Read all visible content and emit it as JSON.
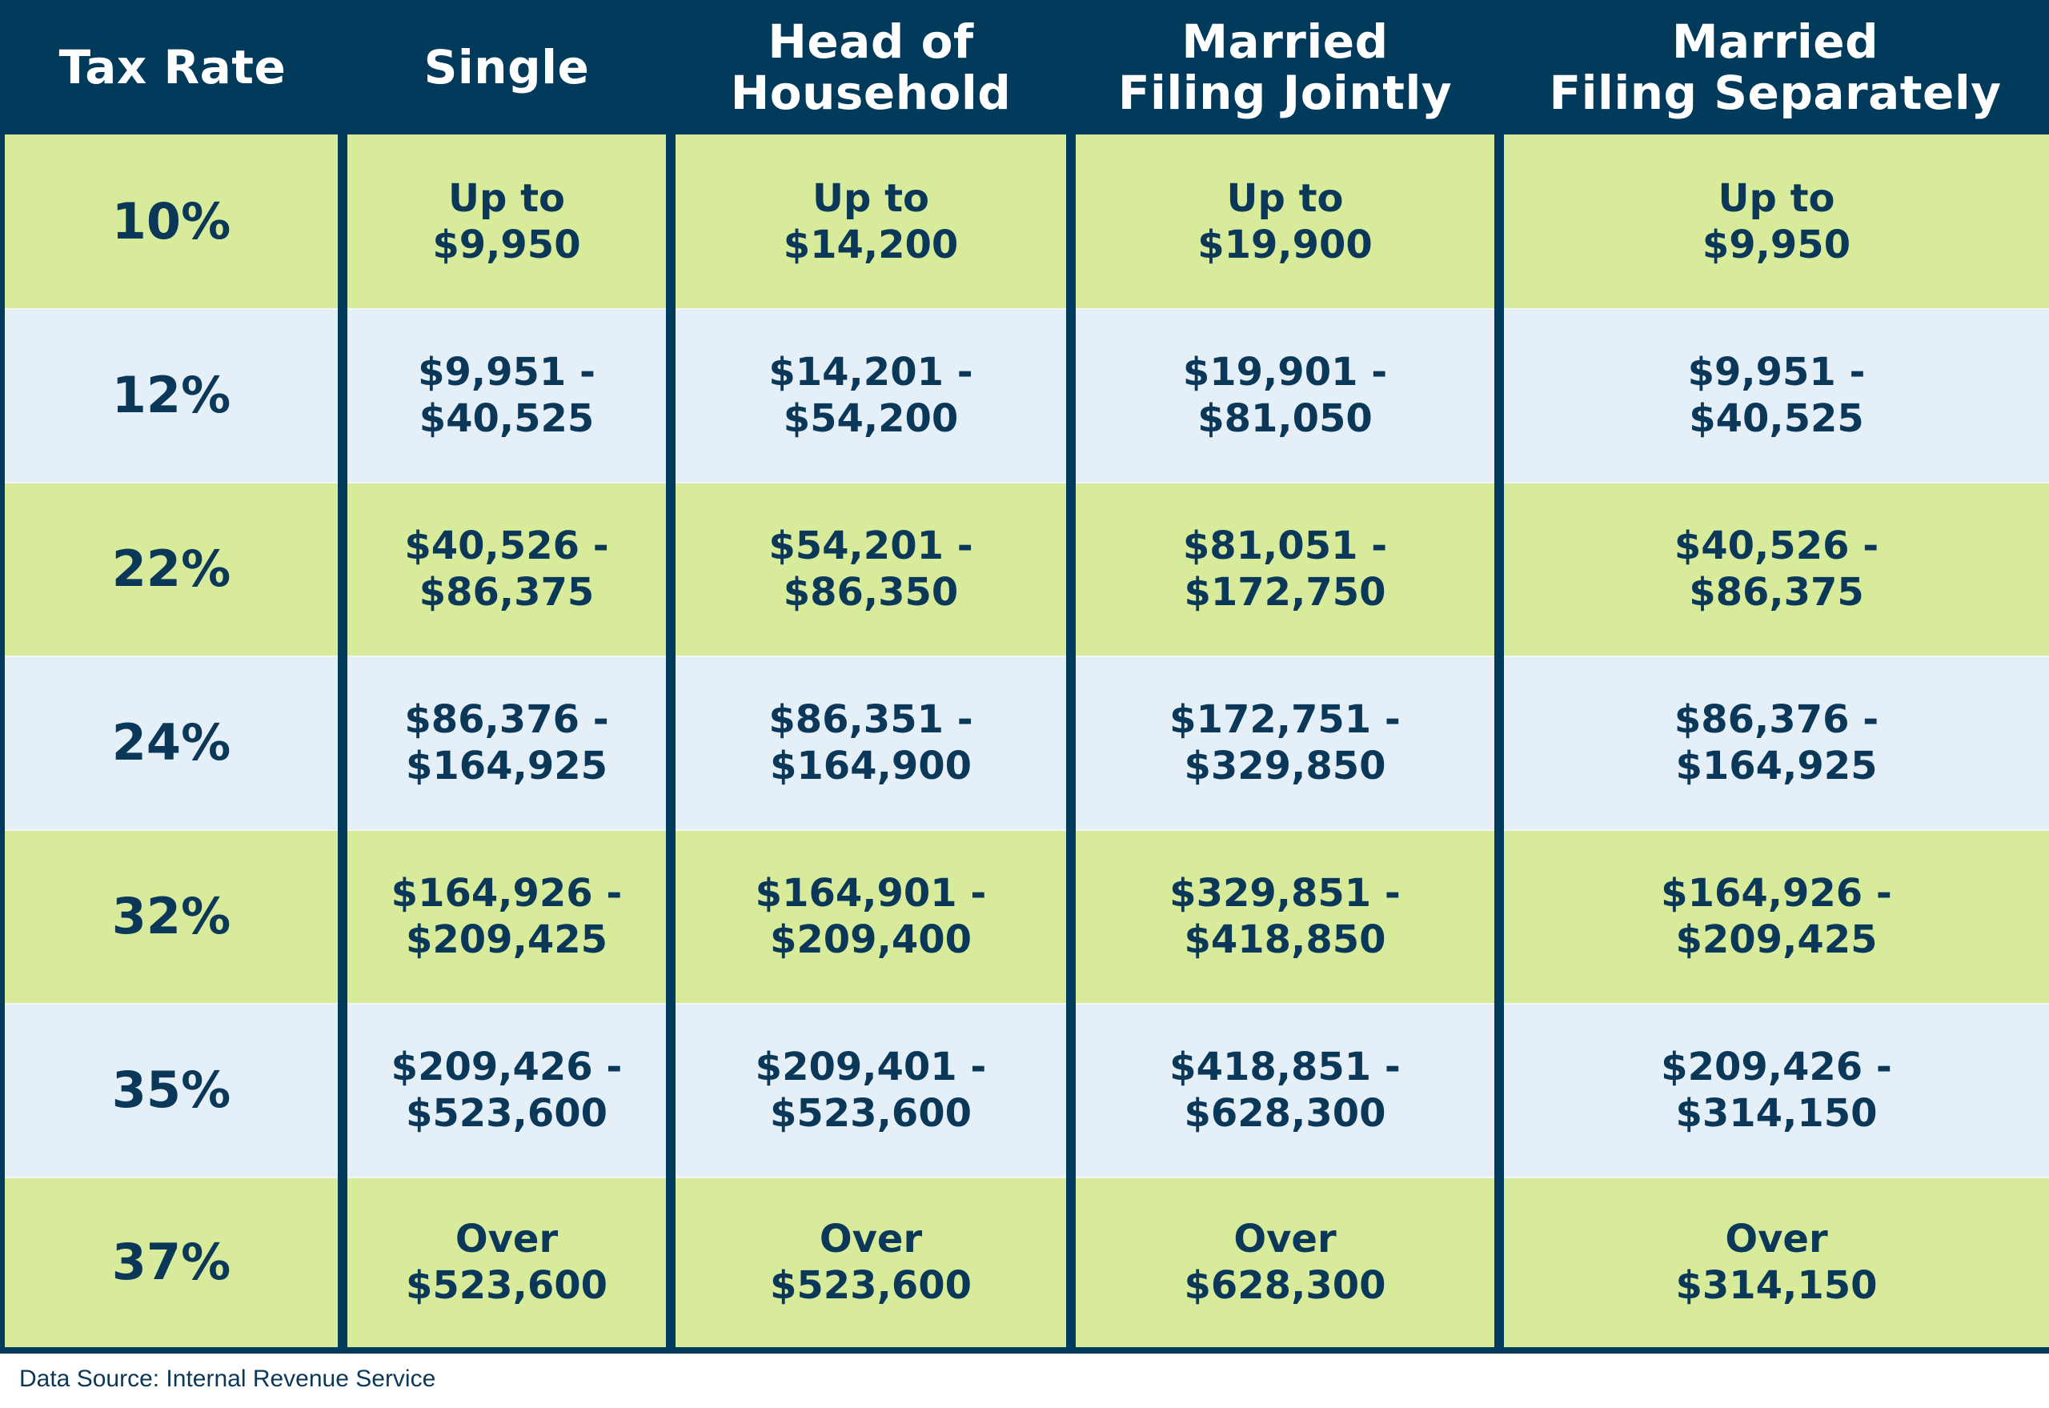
{
  "chart_data": {
    "type": "table",
    "columns": [
      "Tax Rate",
      "Single",
      "Head of\nHousehold",
      "Married\nFiling Jointly",
      "Married\nFiling Separately"
    ],
    "rows": [
      [
        "10%",
        "Up to\n$9,950",
        "Up to\n$14,200",
        "Up to\n$19,900",
        "Up to\n$9,950"
      ],
      [
        "12%",
        "$9,951 -\n$40,525",
        "$14,201 -\n$54,200",
        "$19,901 -\n$81,050",
        "$9,951 -\n$40,525"
      ],
      [
        "22%",
        "$40,526 -\n$86,375",
        "$54,201 -\n$86,350",
        "$81,051 -\n$172,750",
        "$40,526 -\n$86,375"
      ],
      [
        "24%",
        "$86,376 -\n$164,925",
        "$86,351 -\n$164,900",
        "$172,751 -\n$329,850",
        "$86,376 -\n$164,925"
      ],
      [
        "32%",
        "$164,926 -\n$209,425",
        "$164,901 -\n$209,400",
        "$329,851 -\n$418,850",
        "$164,926 -\n$209,425"
      ],
      [
        "35%",
        "$209,426 -\n$523,600",
        "$209,401 -\n$523,600",
        "$418,851 -\n$628,300",
        "$209,426 -\n$314,150"
      ],
      [
        "37%",
        "Over\n$523,600",
        "Over\n$523,600",
        "Over\n$628,300",
        "Over\n$314,150"
      ]
    ],
    "row_colors": [
      "#d7eb9b",
      "#e5eff7"
    ],
    "header_color": "#023a5c"
  },
  "footer": {
    "source": "Data Source: Internal Revenue Service"
  },
  "colors": {
    "navy": "#023a5c",
    "green": "#d7eb9b",
    "light_blue": "#e5eff7",
    "text": "#0b3858"
  }
}
